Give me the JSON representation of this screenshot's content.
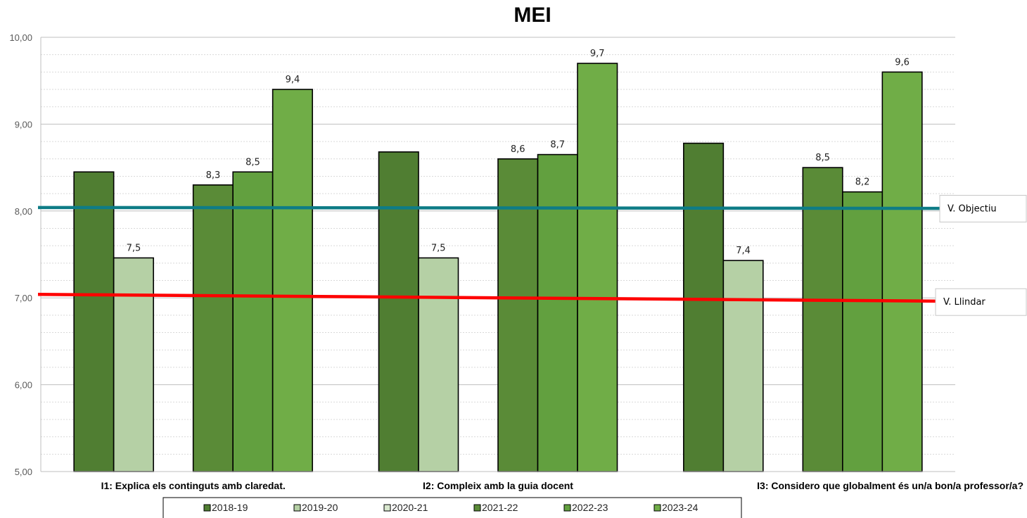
{
  "chart_data": {
    "type": "bar",
    "title": "MEI",
    "categories": [
      "I1: Explica els continguts amb claredat.",
      "I2: Compleix amb la guia docent",
      "I3: Considero que globalment és un/a bon/a professor/a?"
    ],
    "ylim": [
      5,
      10
    ],
    "yticks": [
      "5,00",
      "6,00",
      "7,00",
      "8,00",
      "9,00",
      "10,00"
    ],
    "grid": true,
    "legend_position": "bottom",
    "series": [
      {
        "name": "2018-19",
        "color": "#507e32",
        "values": [
          8.45,
          8.68,
          8.78
        ],
        "labels": [
          "",
          "",
          ""
        ]
      },
      {
        "name": "2019-20",
        "color": "#b5d0a5",
        "values": [
          7.46,
          7.46,
          7.43
        ],
        "labels": [
          "7,5",
          "7,5",
          "7,4"
        ]
      },
      {
        "name": "2020-21",
        "color": "#d9e8cf",
        "values": [
          null,
          null,
          null
        ],
        "labels": [
          "",
          "",
          ""
        ]
      },
      {
        "name": "2021-22",
        "color": "#5a8b37",
        "values": [
          8.3,
          8.6,
          8.5
        ],
        "labels": [
          "8,3",
          "8,6",
          "8,5"
        ]
      },
      {
        "name": "2022-23",
        "color": "#62a03f",
        "values": [
          8.45,
          8.65,
          8.22
        ],
        "labels": [
          "8,5",
          "8,7",
          "8,2"
        ]
      },
      {
        "name": "2023-24",
        "color": "#70ad47",
        "values": [
          9.4,
          9.7,
          9.6
        ],
        "labels": [
          "9,4",
          "9,7",
          "9,6"
        ]
      }
    ],
    "reference_lines": [
      {
        "label": "V. Objectiu",
        "color": "#0e7c86",
        "y_start": 8.04,
        "y_end": 8.03
      },
      {
        "label": "V. Llindar",
        "color": "#ff0000",
        "y_start": 7.04,
        "y_end": 6.96
      }
    ]
  }
}
